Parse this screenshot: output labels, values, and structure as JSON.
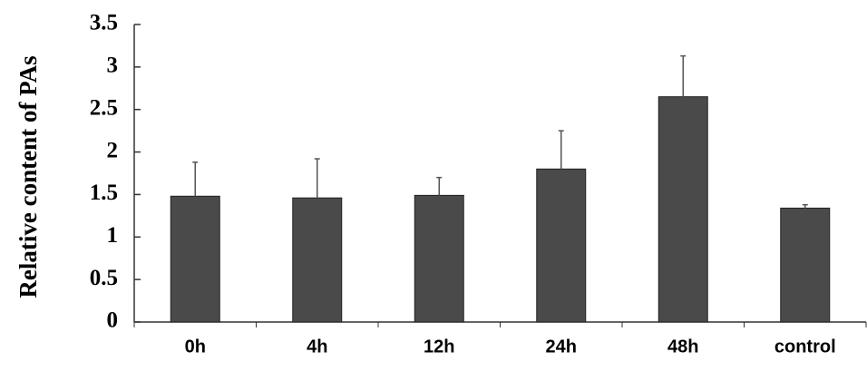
{
  "chart_data": {
    "type": "bar",
    "y_label": "Relative content of PAs",
    "categories": [
      "0h",
      "4h",
      "12h",
      "24h",
      "48h",
      "control"
    ],
    "values": [
      1.48,
      1.46,
      1.49,
      1.8,
      2.65,
      1.34
    ],
    "errors": [
      0.4,
      0.46,
      0.21,
      0.45,
      0.48,
      0.04
    ],
    "color": "#4a4a4a",
    "ylim": [
      0,
      3.5
    ],
    "yticks": [
      0,
      0.5,
      1,
      1.5,
      2,
      2.5,
      3,
      3.5
    ]
  }
}
